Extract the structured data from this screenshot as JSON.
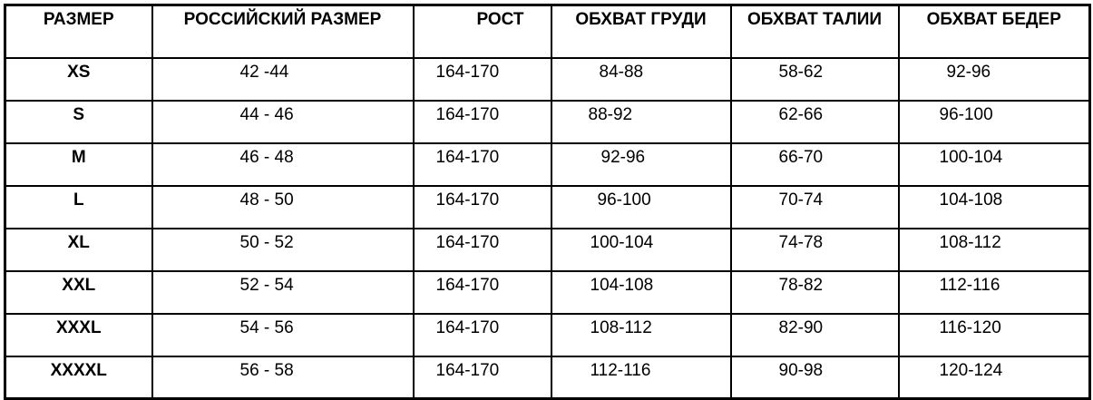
{
  "headers": [
    "РАЗМЕР",
    "РОССИЙСКИЙ РАЗМЕР",
    "РОСТ",
    "ОБХВАТ ГРУДИ",
    "ОБХВАТ ТАЛИИ",
    "ОБХВАТ БЕДЕР"
  ],
  "rows": [
    [
      "XS",
      "42 -44",
      "164-170",
      "84-88",
      "58-62",
      "92-96"
    ],
    [
      "S",
      "44 - 46",
      "164-170",
      "88-92",
      "62-66",
      "96-100"
    ],
    [
      "M",
      "46 - 48",
      "164-170",
      "92-96",
      "66-70",
      "100-104"
    ],
    [
      "L",
      "48 - 50",
      "164-170",
      "96-100",
      "70-74",
      "104-108"
    ],
    [
      "XL",
      "50 - 52",
      "164-170",
      "100-104",
      "74-78",
      "108-112"
    ],
    [
      "XXL",
      "52 - 54",
      "164-170",
      "104-108",
      "78-82",
      "112-116"
    ],
    [
      "XXXL",
      "54 - 56",
      "164-170",
      "108-112",
      "82-90",
      "116-120"
    ],
    [
      "XXXXL",
      "56 - 58",
      "164-170",
      "112-116",
      "90-98",
      "120-124"
    ]
  ]
}
